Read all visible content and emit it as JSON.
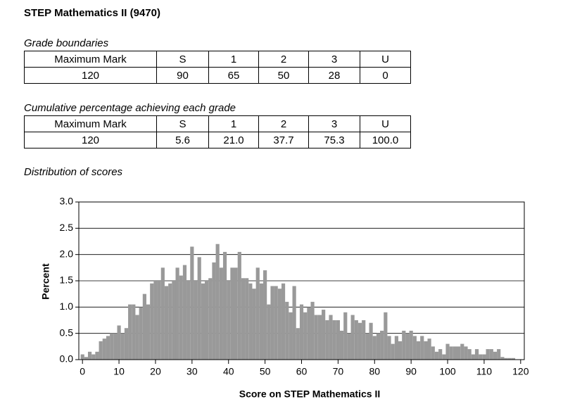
{
  "header": {
    "title": "STEP Mathematics II (9470)"
  },
  "tables": [
    {
      "caption": "Grade boundaries",
      "header": [
        "Maximum Mark",
        "S",
        "1",
        "2",
        "3",
        "U"
      ],
      "rows": [
        [
          "120",
          "90",
          "65",
          "50",
          "28",
          "0"
        ]
      ]
    },
    {
      "caption": "Cumulative percentage achieving each grade",
      "header": [
        "Maximum Mark",
        "S",
        "1",
        "2",
        "3",
        "U"
      ],
      "rows": [
        [
          "120",
          "5.6",
          "21.0",
          "37.7",
          "75.3",
          "100.0"
        ]
      ]
    }
  ],
  "chart_caption": "Distribution of scores",
  "chart_data": {
    "type": "bar",
    "x_label": "Score on STEP Mathematics II",
    "y_label": "Percent",
    "color": "#999999",
    "grid": true,
    "xlim": [
      -1,
      121
    ],
    "ylim": [
      0,
      3
    ],
    "xticks": [
      0,
      10,
      20,
      30,
      40,
      50,
      60,
      70,
      80,
      90,
      100,
      110,
      120
    ],
    "yticks": [
      {
        "value": 0,
        "label": "0.0"
      },
      {
        "value": 0.5,
        "label": "0.5"
      },
      {
        "value": 1,
        "label": "1.0"
      },
      {
        "value": 1.5,
        "label": "1.5"
      },
      {
        "value": 2,
        "label": "2.0"
      },
      {
        "value": 2.5,
        "label": "2.5"
      },
      {
        "value": 3,
        "label": "3.0"
      }
    ],
    "x": [
      0,
      1,
      2,
      3,
      4,
      5,
      6,
      7,
      8,
      9,
      10,
      11,
      12,
      13,
      14,
      15,
      16,
      17,
      18,
      19,
      20,
      21,
      22,
      23,
      24,
      25,
      26,
      27,
      28,
      29,
      30,
      31,
      32,
      33,
      34,
      35,
      36,
      37,
      38,
      39,
      40,
      41,
      42,
      43,
      44,
      45,
      46,
      47,
      48,
      49,
      50,
      51,
      52,
      53,
      54,
      55,
      56,
      57,
      58,
      59,
      60,
      61,
      62,
      63,
      64,
      65,
      66,
      67,
      68,
      69,
      70,
      71,
      72,
      73,
      74,
      75,
      76,
      77,
      78,
      79,
      80,
      81,
      82,
      83,
      84,
      85,
      86,
      87,
      88,
      89,
      90,
      91,
      92,
      93,
      94,
      95,
      96,
      97,
      98,
      99,
      100,
      101,
      102,
      103,
      104,
      105,
      106,
      107,
      108,
      109,
      110,
      111,
      112,
      113,
      114,
      115,
      116,
      117,
      118,
      119,
      120
    ],
    "values": [
      0.1,
      0.05,
      0.15,
      0.1,
      0.15,
      0.35,
      0.4,
      0.45,
      0.5,
      0.5,
      0.65,
      0.5,
      0.6,
      1.05,
      1.05,
      0.85,
      1.0,
      1.25,
      1.05,
      1.45,
      1.5,
      1.5,
      1.75,
      1.4,
      1.45,
      1.5,
      1.75,
      1.6,
      1.8,
      1.5,
      2.15,
      1.5,
      1.95,
      1.45,
      1.5,
      1.55,
      1.85,
      2.2,
      1.75,
      2.05,
      1.5,
      1.75,
      1.75,
      2.05,
      1.55,
      1.55,
      1.45,
      1.35,
      1.75,
      1.45,
      1.7,
      1.05,
      1.4,
      1.4,
      1.35,
      1.45,
      1.1,
      0.9,
      1.4,
      0.6,
      1.05,
      0.9,
      1.0,
      1.1,
      0.85,
      0.85,
      0.95,
      0.75,
      0.85,
      0.75,
      0.75,
      0.55,
      0.9,
      0.5,
      0.85,
      0.75,
      0.7,
      0.75,
      0.5,
      0.7,
      0.45,
      0.5,
      0.55,
      0.9,
      0.45,
      0.3,
      0.45,
      0.35,
      0.55,
      0.5,
      0.55,
      0.45,
      0.35,
      0.45,
      0.35,
      0.4,
      0.25,
      0.15,
      0.2,
      0.1,
      0.3,
      0.25,
      0.25,
      0.25,
      0.3,
      0.25,
      0.2,
      0.1,
      0.2,
      0.1,
      0.1,
      0.2,
      0.2,
      0.15,
      0.2,
      0.05,
      0.03,
      0.03,
      0.03,
      0,
      0
    ]
  }
}
